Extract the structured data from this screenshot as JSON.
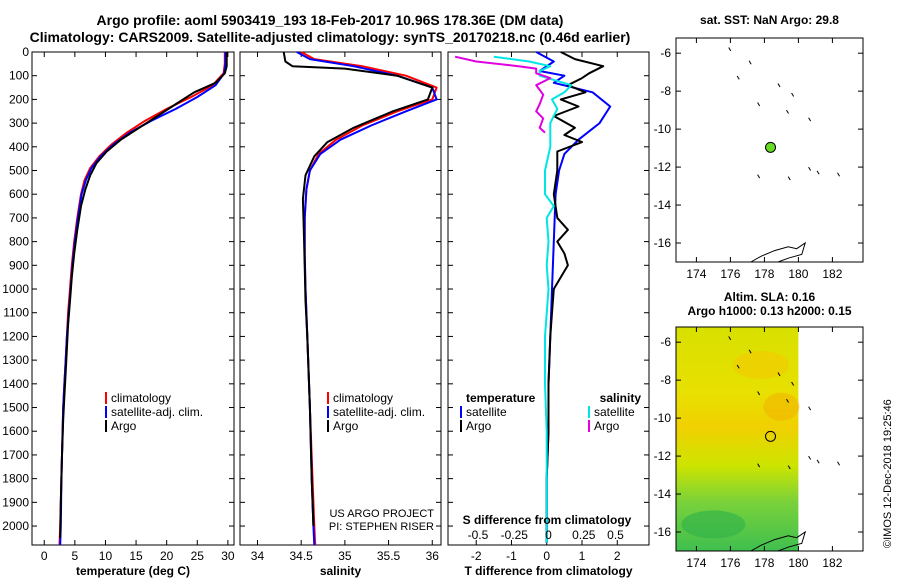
{
  "header": {
    "line1": "Argo profile: aoml 5903419_193 18-Feb-2017 10.96S 178.36E (DM data)",
    "line2": "Climatology: CARS2009. Satellite-adjusted climatology: synTS_20170218.nc (0.46d earlier)"
  },
  "side_label": "©IMOS 12-Dec-2018 19:25:46",
  "colors": {
    "climatology": "#ff0000",
    "satellite": "#0000ff",
    "argo": "#000000",
    "sat_salinity": "#00e5e5",
    "argo_salinity": "#e000e0"
  },
  "chart_data": [
    {
      "id": "temperature",
      "type": "line",
      "xlabel": "temperature (deg C)",
      "xlim": [
        -2,
        31
      ],
      "xticks": [
        0,
        5,
        10,
        15,
        20,
        25,
        30
      ],
      "ylim": [
        0,
        2080
      ],
      "yticks": [
        0,
        100,
        200,
        300,
        400,
        500,
        600,
        700,
        800,
        900,
        1000,
        1100,
        1200,
        1300,
        1400,
        1500,
        1600,
        1700,
        1800,
        1900,
        2000
      ],
      "legend": [
        "climatology",
        "satellite-adj. clim.",
        "Argo"
      ],
      "series": [
        {
          "name": "climatology",
          "color": "climatology",
          "points": [
            [
              29.5,
              0
            ],
            [
              29.5,
              50
            ],
            [
              29.3,
              90
            ],
            [
              27.5,
              140
            ],
            [
              24,
              190
            ],
            [
              20,
              240
            ],
            [
              16.5,
              290
            ],
            [
              13.5,
              340
            ],
            [
              11,
              390
            ],
            [
              9,
              440
            ],
            [
              7.5,
              490
            ],
            [
              6.6,
              540
            ],
            [
              6,
              600
            ],
            [
              5.4,
              700
            ],
            [
              4.9,
              800
            ],
            [
              4.5,
              900
            ],
            [
              4.2,
              1000
            ],
            [
              3.9,
              1100
            ],
            [
              3.7,
              1200
            ],
            [
              3.5,
              1300
            ],
            [
              3.3,
              1400
            ],
            [
              3.1,
              1500
            ],
            [
              3,
              1600
            ],
            [
              2.8,
              1800
            ],
            [
              2.6,
              2000
            ],
            [
              2.5,
              2080
            ]
          ]
        },
        {
          "name": "satellite",
          "color": "satellite",
          "points": [
            [
              29.6,
              0
            ],
            [
              29.6,
              50
            ],
            [
              29.4,
              90
            ],
            [
              28,
              140
            ],
            [
              25,
              190
            ],
            [
              21.5,
              240
            ],
            [
              17.5,
              290
            ],
            [
              14,
              340
            ],
            [
              11.3,
              390
            ],
            [
              9.2,
              440
            ],
            [
              7.7,
              490
            ],
            [
              6.8,
              540
            ],
            [
              6.1,
              600
            ],
            [
              5.5,
              700
            ],
            [
              5,
              800
            ],
            [
              4.6,
              900
            ],
            [
              4.3,
              1000
            ],
            [
              4,
              1100
            ],
            [
              3.7,
              1200
            ],
            [
              3.5,
              1300
            ],
            [
              3.3,
              1400
            ],
            [
              3.1,
              1500
            ],
            [
              3,
              1600
            ],
            [
              2.8,
              1800
            ],
            [
              2.7,
              2000
            ],
            [
              2.6,
              2080
            ]
          ]
        },
        {
          "name": "argo",
          "color": "argo",
          "points": [
            [
              29.8,
              0
            ],
            [
              29.8,
              60
            ],
            [
              29.5,
              90
            ],
            [
              28,
              130
            ],
            [
              24.5,
              170
            ],
            [
              21.5,
              220
            ],
            [
              18.5,
              270
            ],
            [
              15.5,
              320
            ],
            [
              12.5,
              370
            ],
            [
              10.2,
              420
            ],
            [
              8.5,
              470
            ],
            [
              7.5,
              520
            ],
            [
              6.7,
              580
            ],
            [
              6,
              650
            ],
            [
              5.4,
              750
            ],
            [
              4.9,
              850
            ],
            [
              4.5,
              950
            ],
            [
              4.2,
              1050
            ],
            [
              3.9,
              1150
            ],
            [
              3.7,
              1250
            ],
            [
              3.5,
              1350
            ],
            [
              3.3,
              1450
            ],
            [
              3.1,
              1550
            ],
            [
              2.9,
              1700
            ],
            [
              2.7,
              1900
            ],
            [
              2.6,
              2050
            ]
          ]
        }
      ]
    },
    {
      "id": "salinity",
      "type": "line",
      "xlabel": "salinity",
      "xlim": [
        33.8,
        36.1
      ],
      "xticks": [
        34,
        34.5,
        35,
        35.5,
        36
      ],
      "ylim": [
        0,
        2080
      ],
      "legend": [
        "climatology",
        "satellite-adj. clim.",
        "Argo"
      ],
      "credit": [
        "US ARGO PROJECT",
        "PI: STEPHEN RISER"
      ],
      "series": [
        {
          "name": "climatology",
          "color": "climatology",
          "points": [
            [
              34.5,
              0
            ],
            [
              34.65,
              30
            ],
            [
              35.2,
              60
            ],
            [
              35.7,
              100
            ],
            [
              36.05,
              150
            ],
            [
              36.0,
              200
            ],
            [
              35.6,
              250
            ],
            [
              35.2,
              310
            ],
            [
              34.9,
              370
            ],
            [
              34.7,
              430
            ],
            [
              34.6,
              500
            ],
            [
              34.56,
              580
            ],
            [
              34.54,
              700
            ],
            [
              34.54,
              850
            ],
            [
              34.55,
              1000
            ],
            [
              34.57,
              1200
            ],
            [
              34.6,
              1500
            ],
            [
              34.63,
              1800
            ],
            [
              34.65,
              2000
            ],
            [
              34.66,
              2080
            ]
          ]
        },
        {
          "name": "satellite",
          "color": "satellite",
          "points": [
            [
              34.45,
              0
            ],
            [
              34.6,
              30
            ],
            [
              35.1,
              60
            ],
            [
              35.6,
              100
            ],
            [
              36.0,
              150
            ],
            [
              36.05,
              200
            ],
            [
              35.7,
              250
            ],
            [
              35.3,
              310
            ],
            [
              34.95,
              370
            ],
            [
              34.72,
              430
            ],
            [
              34.6,
              500
            ],
            [
              34.56,
              580
            ],
            [
              34.54,
              700
            ],
            [
              34.54,
              850
            ],
            [
              34.55,
              1000
            ],
            [
              34.57,
              1200
            ],
            [
              34.6,
              1500
            ],
            [
              34.62,
              1800
            ],
            [
              34.64,
              2000
            ],
            [
              34.65,
              2080
            ]
          ]
        },
        {
          "name": "argo",
          "color": "argo",
          "points": [
            [
              34.3,
              0
            ],
            [
              34.32,
              40
            ],
            [
              34.4,
              60
            ],
            [
              35.0,
              70
            ],
            [
              35.6,
              100
            ],
            [
              36.0,
              150
            ],
            [
              35.95,
              200
            ],
            [
              35.55,
              250
            ],
            [
              35.1,
              320
            ],
            [
              34.8,
              380
            ],
            [
              34.65,
              440
            ],
            [
              34.55,
              520
            ],
            [
              34.52,
              620
            ],
            [
              34.53,
              750
            ],
            [
              34.54,
              900
            ],
            [
              34.55,
              1050
            ],
            [
              34.57,
              1200
            ],
            [
              34.6,
              1500
            ],
            [
              34.62,
              1800
            ],
            [
              34.64,
              2000
            ]
          ]
        }
      ]
    },
    {
      "id": "difference",
      "type": "line",
      "xlabel": "T difference from climatology",
      "xlim": [
        -2.8,
        2.9
      ],
      "xticks": [
        -2,
        -1,
        0,
        1,
        2
      ],
      "s_label": "S difference from climatology",
      "s_ticks": [
        {
          "label": "-0.5",
          "x": -1.95
        },
        {
          "label": "-0.25",
          "x": -0.92
        },
        {
          "label": "0",
          "x": 0.05
        },
        {
          "label": "0.25",
          "x": 1.05
        },
        {
          "label": "0.5",
          "x": 1.95
        }
      ],
      "ylim": [
        0,
        2080
      ],
      "legend_left": {
        "title": "temperature",
        "items": [
          "satellite",
          "Argo"
        ]
      },
      "legend_right": {
        "title": "salinity",
        "items": [
          "satellite",
          "Argo"
        ]
      },
      "series": [
        {
          "name": "T satellite",
          "color": "satellite",
          "points": [
            [
              -0.3,
              0
            ],
            [
              0.2,
              40
            ],
            [
              -0.2,
              80
            ],
            [
              0.5,
              100
            ],
            [
              0.2,
              130
            ],
            [
              1.3,
              170
            ],
            [
              1.8,
              230
            ],
            [
              1.5,
              300
            ],
            [
              0.9,
              370
            ],
            [
              0.5,
              430
            ],
            [
              0.35,
              500
            ],
            [
              0.25,
              600
            ],
            [
              0.2,
              800
            ],
            [
              0.15,
              1000
            ],
            [
              0.1,
              1200
            ],
            [
              0.05,
              1400
            ],
            [
              0.05,
              1600
            ],
            [
              0,
              1800
            ],
            [
              0,
              2000
            ],
            [
              0,
              2070
            ]
          ]
        },
        {
          "name": "T argo",
          "color": "argo",
          "points": [
            [
              0.4,
              0
            ],
            [
              0.8,
              30
            ],
            [
              1.6,
              60
            ],
            [
              1.2,
              90
            ],
            [
              1.0,
              110
            ],
            [
              0.6,
              140
            ],
            [
              1.1,
              170
            ],
            [
              0.4,
              200
            ],
            [
              0.9,
              230
            ],
            [
              0.2,
              270
            ],
            [
              0.8,
              320
            ],
            [
              0.5,
              350
            ],
            [
              1.0,
              380
            ],
            [
              0.3,
              420
            ],
            [
              0.3,
              500
            ],
            [
              0.2,
              600
            ],
            [
              0.3,
              700
            ],
            [
              0.6,
              750
            ],
            [
              0.3,
              800
            ],
            [
              0.5,
              850
            ],
            [
              0.6,
              900
            ],
            [
              0.2,
              1000
            ],
            [
              0.15,
              1100
            ],
            [
              0.1,
              1200
            ],
            [
              0.05,
              1400
            ],
            [
              0.05,
              1600
            ],
            [
              0,
              1800
            ],
            [
              0,
              2000
            ],
            [
              0,
              2070
            ]
          ]
        },
        {
          "name": "S satellite",
          "color": "sat_salinity",
          "points": [
            [
              -1.5,
              20
            ],
            [
              -0.5,
              40
            ],
            [
              0.1,
              60
            ],
            [
              -0.2,
              80
            ],
            [
              -0.2,
              100
            ],
            [
              0.7,
              140
            ],
            [
              0.5,
              170
            ],
            [
              0.15,
              200
            ],
            [
              0.3,
              240
            ],
            [
              0.1,
              300
            ],
            [
              0.1,
              400
            ],
            [
              -0.05,
              500
            ],
            [
              -0.05,
              600
            ],
            [
              0.2,
              650
            ],
            [
              0.0,
              700
            ],
            [
              0.05,
              800
            ],
            [
              0.0,
              900
            ],
            [
              0.05,
              1000
            ],
            [
              -0.05,
              1200
            ],
            [
              -0.05,
              1400
            ],
            [
              0.0,
              1600
            ],
            [
              0.0,
              1800
            ],
            [
              0.0,
              2000
            ],
            [
              0.0,
              2070
            ]
          ]
        },
        {
          "name": "S argo",
          "color": "argo_salinity",
          "points": [
            [
              -2.6,
              20
            ],
            [
              -2.0,
              40
            ],
            [
              -0.8,
              60
            ],
            [
              -0.3,
              70
            ],
            [
              -0.3,
              90
            ],
            [
              0.1,
              110
            ],
            [
              -0.3,
              140
            ],
            [
              -0.1,
              180
            ],
            [
              -0.2,
              220
            ],
            [
              -0.3,
              250
            ],
            [
              -0.1,
              280
            ],
            [
              -0.2,
              320
            ],
            [
              -0.05,
              340
            ]
          ]
        }
      ]
    },
    {
      "id": "map-sst",
      "type": "scatter",
      "title": "sat. SST: NaN Argo: 29.8",
      "xlim": [
        172.8,
        183.8
      ],
      "ylim": [
        -17,
        -5.2
      ],
      "xticks": [
        174,
        176,
        178,
        180,
        182
      ],
      "yticks": [
        -6,
        -8,
        -10,
        -12,
        -14,
        -16
      ],
      "argo_position": {
        "lon": 178.36,
        "lat": -10.96
      }
    },
    {
      "id": "map-sla",
      "type": "heatmap",
      "title_line1": "Altim. SLA: 0.16",
      "title_line2": "Argo h1000: 0.13 h2000: 0.15",
      "xlim": [
        172.8,
        183.8
      ],
      "ylim": [
        -17,
        -5.2
      ],
      "xticks": [
        174,
        176,
        178,
        180,
        182
      ],
      "yticks": [
        -6,
        -8,
        -10,
        -12,
        -14,
        -16
      ],
      "field_lon_max": 180.0,
      "argo_position": {
        "lon": 178.36,
        "lat": -10.96
      }
    }
  ]
}
